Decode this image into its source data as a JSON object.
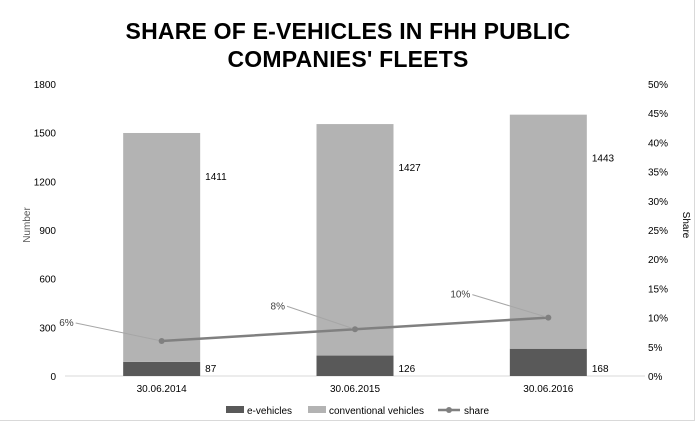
{
  "chart_data": {
    "type": "bar",
    "title_lines": [
      "SHARE OF E-VEHICLES IN FHH PUBLIC",
      "COMPANIES' FLEETS"
    ],
    "categories": [
      "30.06.2014",
      "30.06.2015",
      "30.06.2016"
    ],
    "series": [
      {
        "name": "e-vehicles",
        "type": "bar",
        "stack": "fleet",
        "axis": "left",
        "color": "#595959",
        "values": [
          87,
          126,
          168
        ],
        "labels": [
          "87",
          "126",
          "168"
        ]
      },
      {
        "name": "conventional vehicles",
        "type": "bar",
        "stack": "fleet",
        "axis": "left",
        "color": "#b3b3b3",
        "values": [
          1411,
          1427,
          1443
        ],
        "labels": [
          "1411",
          "1427",
          "1443"
        ]
      },
      {
        "name": "share",
        "type": "line",
        "axis": "right",
        "color": "#808080",
        "values": [
          6,
          8,
          10
        ],
        "labels": [
          "6%",
          "8%",
          "10%"
        ]
      }
    ],
    "y_left": {
      "label": "Number",
      "min": 0,
      "max": 1800,
      "ticks": [
        "0",
        "300",
        "600",
        "900",
        "1200",
        "1500",
        "1800"
      ]
    },
    "y_right": {
      "label": "Share",
      "min": 0,
      "max": 50,
      "ticks": [
        "0%",
        "5%",
        "10%",
        "15%",
        "20%",
        "25%",
        "30%",
        "35%",
        "40%",
        "45%",
        "50%"
      ]
    },
    "grid": false,
    "legend": "bottom"
  }
}
